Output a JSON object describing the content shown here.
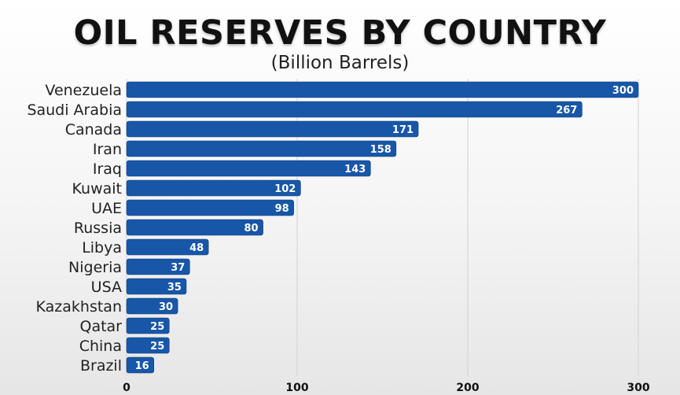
{
  "chart_data": {
    "type": "bar",
    "orientation": "horizontal",
    "title": "OIL RESERVES BY COUNTRY",
    "subtitle": "(Billion Barrels)",
    "categories": [
      "Venezuela",
      "Saudi Arabia",
      "Canada",
      "Iran",
      "Iraq",
      "Kuwait",
      "UAE",
      "Russia",
      "Libya",
      "Nigeria",
      "USA",
      "Kazakhstan",
      "Qatar",
      "China",
      "Brazil"
    ],
    "values": [
      300,
      267,
      171,
      158,
      143,
      102,
      98,
      80,
      48,
      37,
      35,
      30,
      25,
      25,
      16
    ],
    "xlim": [
      0,
      300
    ],
    "xticks": [
      0,
      100,
      200,
      300
    ],
    "bar_color": "#1856a8",
    "grid": true,
    "legend": "none"
  }
}
